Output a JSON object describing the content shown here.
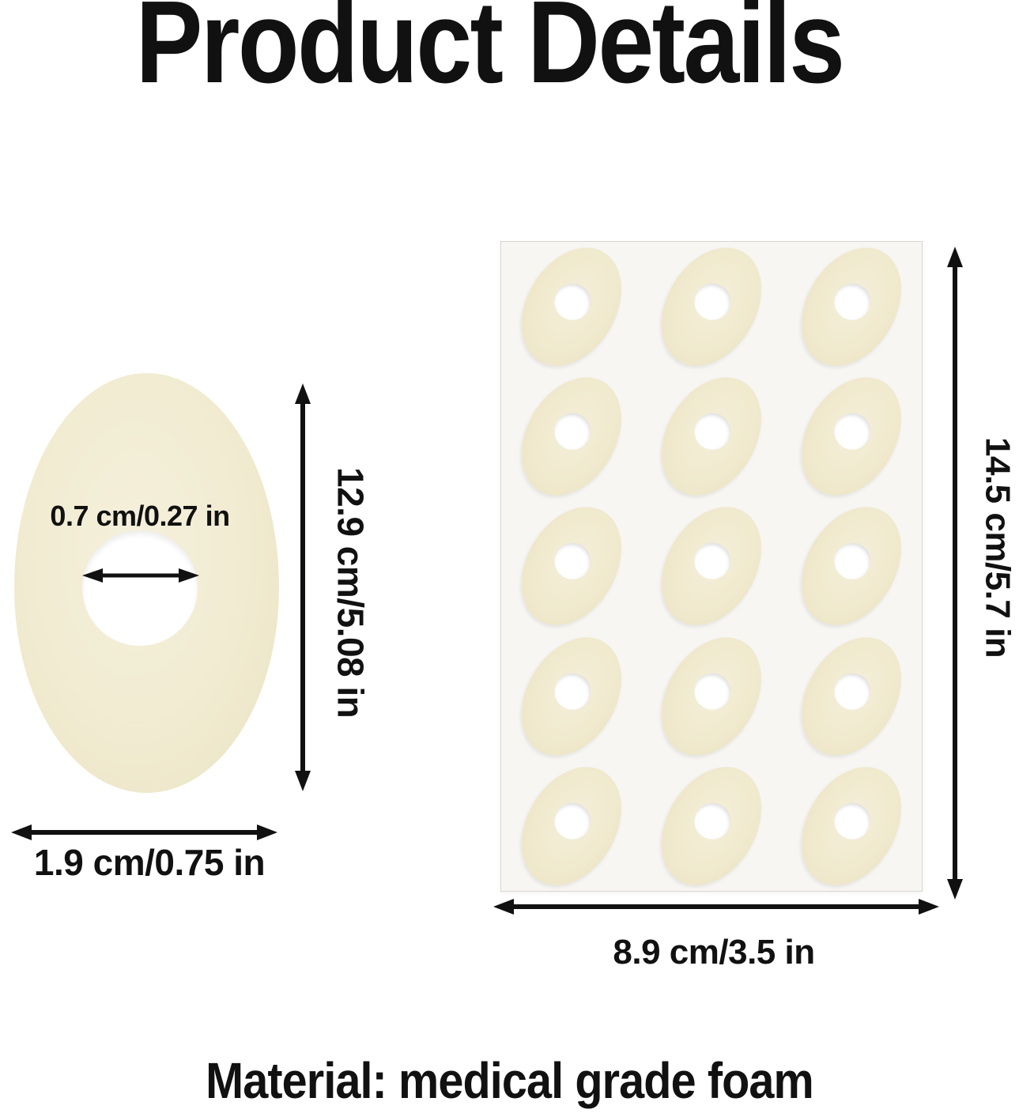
{
  "title": "Product Details",
  "material_note": "Material: medical grade foam",
  "single_pad": {
    "hole_diameter_label": "0.7 cm/0.27 in",
    "height_label": "12.9 cm/5.08 in",
    "width_label": "1.9 cm/0.75 in"
  },
  "sheet": {
    "rows": 5,
    "cols": 3,
    "pad_count": 15,
    "height_label": "14.5 cm/5.7 in",
    "width_label": "8.9 cm/3.5 in"
  },
  "colors": {
    "ink": "#111111",
    "pad_fill": "#f1ebd1",
    "sheet_fill": "#f7f6f3"
  }
}
